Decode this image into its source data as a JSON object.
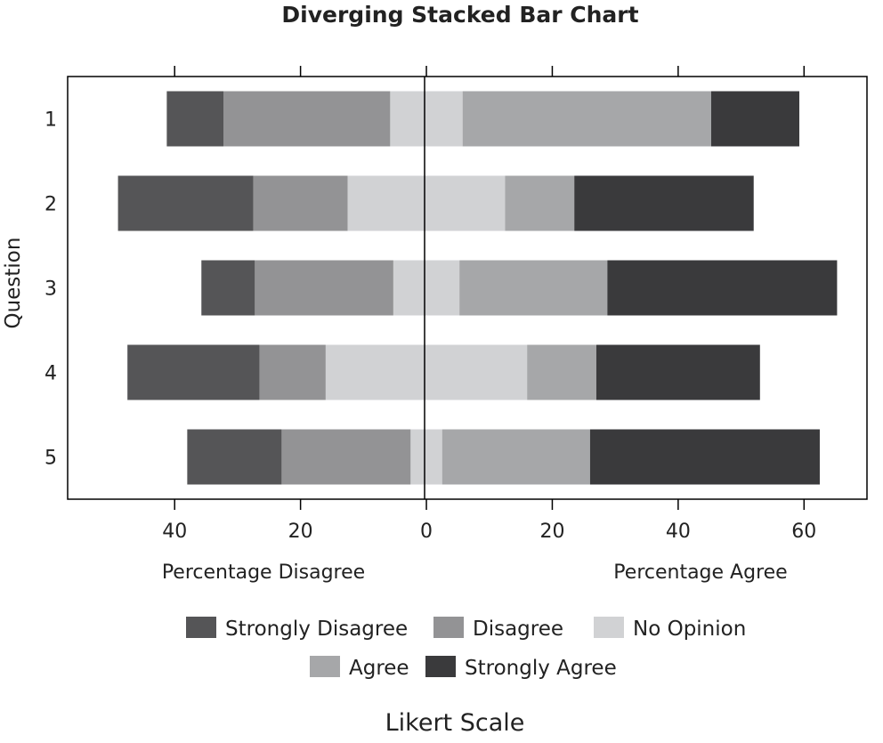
{
  "chart_data": {
    "type": "bar",
    "subtype": "diverging-stacked-horizontal",
    "title": "Diverging Stacked Bar Chart",
    "xlabel": "Likert Scale",
    "ylabel": "Question",
    "x_side_labels": {
      "negative": "Percentage Disagree",
      "positive": "Percentage Agree"
    },
    "xlim": [
      -57,
      70
    ],
    "x_ticks": [
      -40,
      -20,
      0,
      20,
      40,
      60
    ],
    "x_tick_labels": [
      "40",
      "20",
      "0",
      "20",
      "40",
      "60"
    ],
    "categories": [
      "1",
      "2",
      "3",
      "4",
      "5"
    ],
    "series": [
      {
        "name": "Strongly Disagree",
        "color": "#555557",
        "values": [
          9,
          21.5,
          8.5,
          21,
          15
        ]
      },
      {
        "name": "Disagree",
        "color": "#939395",
        "values": [
          26.5,
          15,
          22,
          10.5,
          20.5
        ]
      },
      {
        "name": "No Opinion",
        "color": "#d1d2d4",
        "values": [
          11.5,
          25,
          10.5,
          32,
          5
        ]
      },
      {
        "name": "Agree",
        "color": "#a6a7a9",
        "values": [
          39.5,
          11,
          23.5,
          11,
          23.5
        ]
      },
      {
        "name": "Strongly Agree",
        "color": "#3a3a3c",
        "values": [
          14,
          28.5,
          36.5,
          26,
          36.5
        ]
      }
    ],
    "neutral_series": "No Opinion",
    "legend_position": "bottom",
    "grid": false
  }
}
